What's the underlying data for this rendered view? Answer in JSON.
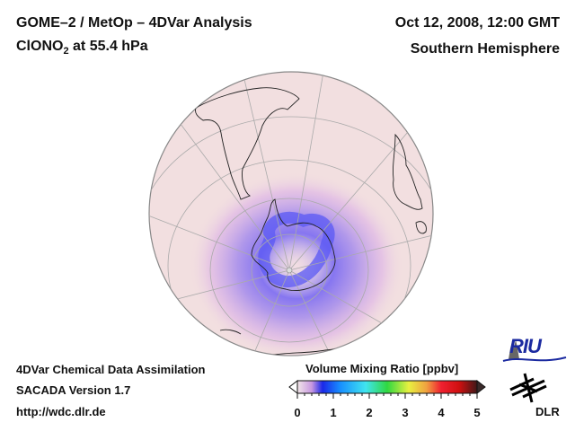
{
  "header": {
    "title": "GOME–2 / MetOp – 4DVar Analysis",
    "species_main": "ClONO",
    "species_sub": "2",
    "species_rest": " at 55.4 hPa",
    "datetime": "Oct 12, 2008, 12:00 GMT",
    "region": "Southern Hemisphere"
  },
  "footer": {
    "line1": "4DVar Chemical Data Assimilation",
    "line2": "SACADA Version 1.7",
    "line3": "http://wdc.dlr.de"
  },
  "colorbar": {
    "title": "Volume Mixing Ratio [ppbv]",
    "ticks": [
      "0",
      "1",
      "2",
      "3",
      "4",
      "5"
    ],
    "min": 0,
    "max": 5,
    "colors": [
      "#f2dde0",
      "#d9b0e8",
      "#2030f0",
      "#1090ff",
      "#40e0f0",
      "#30e040",
      "#f0f030",
      "#f0a030",
      "#f01020",
      "#b01010",
      "#401010"
    ]
  },
  "map": {
    "projection": "orthographic",
    "hemisphere": "south",
    "background_color": "#f2dfe0",
    "low_value_color": "#f2dde0",
    "anomaly_color": "#6a5cf0"
  },
  "logos": {
    "riu": "RIU",
    "dlr": "DLR"
  }
}
